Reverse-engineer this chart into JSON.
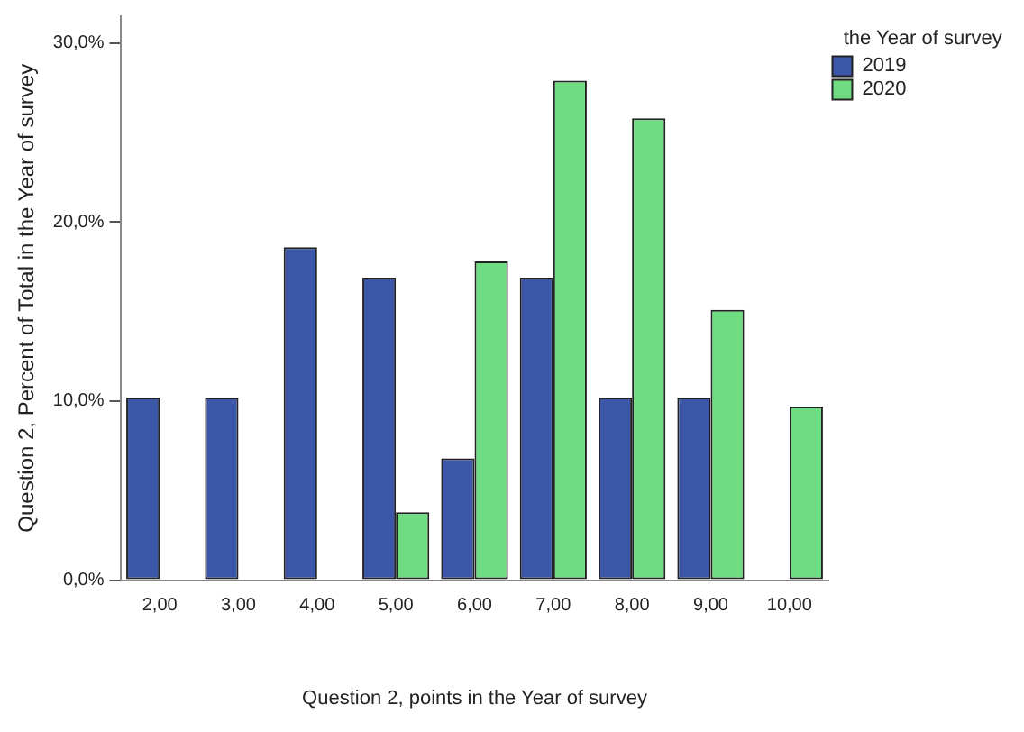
{
  "chart_data": {
    "type": "bar",
    "xlabel": "Question 2, points in the Year of survey",
    "ylabel": "Question 2, Percent of Total in the Year of survey",
    "legend_title": "the Year of survey",
    "categories": [
      "2,00",
      "3,00",
      "4,00",
      "5,00",
      "6,00",
      "7,00",
      "8,00",
      "9,00",
      "10,00"
    ],
    "series": [
      {
        "name": "2019",
        "color": "#3c56a8",
        "values": [
          10.2,
          10.2,
          18.6,
          16.9,
          6.8,
          16.9,
          10.2,
          10.2,
          0
        ]
      },
      {
        "name": "2020",
        "color": "#6fdc82",
        "values": [
          0,
          0,
          0,
          3.8,
          17.8,
          27.9,
          25.8,
          15.1,
          9.7
        ]
      }
    ],
    "ylim": [
      0,
      31.5
    ],
    "yticks": [
      {
        "value": 0,
        "label": "0,0%"
      },
      {
        "value": 10,
        "label": "10,0%"
      },
      {
        "value": 20,
        "label": "20,0%"
      },
      {
        "value": 30,
        "label": "30,0%"
      }
    ],
    "grid": false,
    "legend": "top right"
  }
}
